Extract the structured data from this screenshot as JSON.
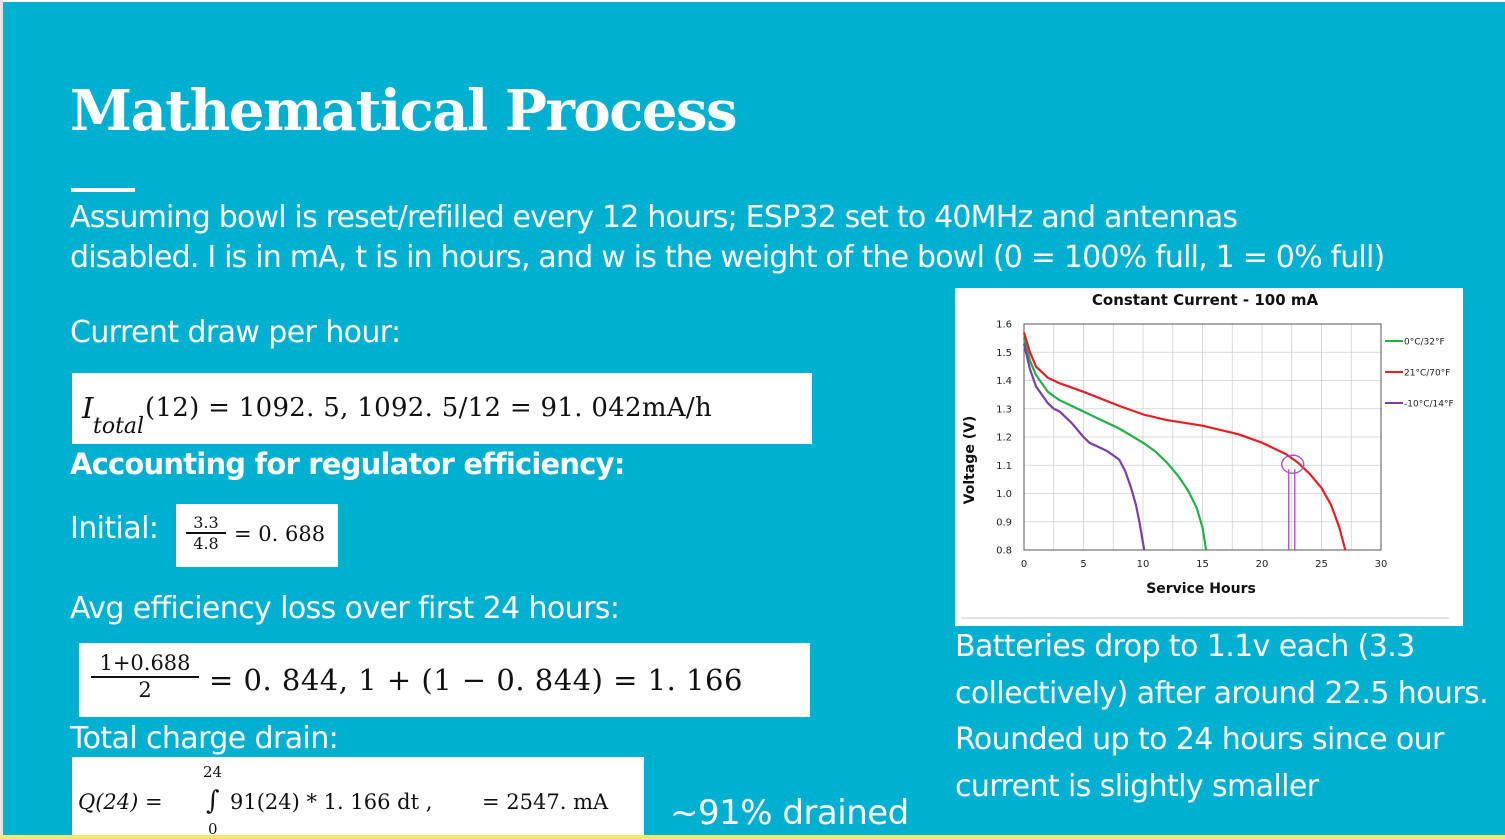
{
  "slide": {
    "title": "Mathematical Process",
    "intro_line1": "Assuming bowl is reset/refilled every 12 hours; ESP32 set to 40MHz and antennas",
    "intro_line2": "disabled. I is in mA, t is in hours, and w is the weight of the bowl (0 = 100% full, 1 = 0% full)",
    "current_draw_label": "Current draw per hour:",
    "regulator_label": "Accounting for regulator efficiency:",
    "initial_label": "Initial:",
    "avg_loss_label": "Avg efficiency loss over first 24 hours:",
    "total_drain_label": "Total charge drain:",
    "drained_text": "~91% drained",
    "note_lines": [
      "Batteries drop to 1.1v each (3.3",
      "collectively) after around 22.5 hours.",
      "Rounded up to 24 hours since our",
      "current is slightly smaller"
    ]
  },
  "equations": {
    "current": {
      "I": "I",
      "subscript": "total",
      "rest": "(12)  =  1092. 5,  1092. 5/12   =   91. 042mA/h"
    },
    "initial": {
      "numerator": "3.3",
      "denominator": "4.8",
      "rest": "=  0. 688"
    },
    "avg": {
      "numerator": "1+0.688",
      "denominator": "2",
      "rest": "=  0. 844,  1  +  (1  −  0. 844)   =   1. 166"
    },
    "drain": {
      "lhs": "Q(24)   =",
      "upper": "24",
      "lower": "0",
      "integral": "∫",
      "integrand": "91(24)  *  1. 166 dt ,",
      "result": "=  2547. mA"
    }
  },
  "chart_data": {
    "type": "line",
    "title": "Constant Current - 100 mA",
    "xlabel": "Service Hours",
    "ylabel": "Voltage (V)",
    "xlim": [
      0,
      30
    ],
    "ylim": [
      0.8,
      1.6
    ],
    "xticks": [
      0,
      5,
      10,
      15,
      20,
      25,
      30
    ],
    "yticks": [
      0.8,
      0.9,
      1.0,
      1.1,
      1.2,
      1.3,
      1.4,
      1.5,
      1.6
    ],
    "grid": true,
    "legend_position": "right",
    "series": [
      {
        "name": "0°C/32°F",
        "color": "#21b14b",
        "x": [
          0,
          0.5,
          1,
          2,
          3,
          4,
          6,
          8,
          10,
          11,
          12,
          13,
          13.8,
          14.5,
          15.0,
          15.3
        ],
        "y": [
          1.55,
          1.47,
          1.42,
          1.36,
          1.33,
          1.31,
          1.27,
          1.23,
          1.18,
          1.15,
          1.11,
          1.06,
          1.01,
          0.95,
          0.88,
          0.8
        ]
      },
      {
        "name": "21°C/70°F",
        "color": "#ea1c24",
        "x": [
          0,
          0.5,
          1,
          2,
          3,
          5,
          8,
          10,
          12,
          15,
          18,
          20,
          22,
          23,
          24,
          25,
          25.8,
          26.5,
          27.0
        ],
        "y": [
          1.57,
          1.5,
          1.45,
          1.41,
          1.39,
          1.36,
          1.31,
          1.28,
          1.26,
          1.24,
          1.21,
          1.18,
          1.14,
          1.11,
          1.07,
          1.02,
          0.96,
          0.88,
          0.8
        ]
      },
      {
        "name": "-10°C/14°F",
        "color": "#7a3fa3",
        "x": [
          0,
          0.5,
          1,
          2,
          2.5,
          3,
          4,
          5,
          5.5,
          6,
          7,
          8,
          8.5,
          9,
          9.4,
          9.7,
          9.9,
          10.1
        ],
        "y": [
          1.53,
          1.44,
          1.38,
          1.32,
          1.3,
          1.29,
          1.25,
          1.2,
          1.18,
          1.17,
          1.15,
          1.12,
          1.08,
          1.02,
          0.96,
          0.9,
          0.85,
          0.8
        ]
      }
    ],
    "annotation": {
      "x": 22.5,
      "y": 1.1,
      "color": "#b04fc8"
    }
  }
}
